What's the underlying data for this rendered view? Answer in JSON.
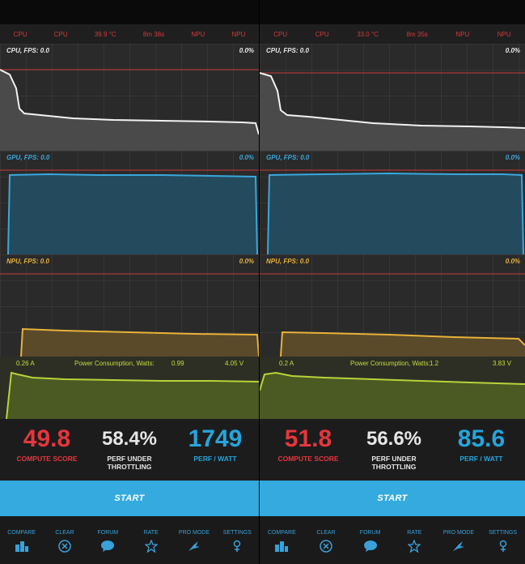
{
  "left": {
    "topbar": [
      "CPU",
      "CPU",
      "39.9 °C",
      "8m 38s",
      "NPU",
      "NPU"
    ],
    "cpu_label": "CPU, FPS:  0.0",
    "cpu_pct": "0.0%",
    "gpu_label": "GPU, FPS:  0.0",
    "gpu_pct": "0.0%",
    "npu_label": "NPU, FPS:  0.0",
    "npu_pct": "0.0%",
    "power_current": "0.26 A",
    "power_title": "Power Consumption, Watts:",
    "power_watts": "0.99",
    "power_voltage": "4.05 V",
    "compute_score": "49.8",
    "compute_label": "COMPUTE SCORE",
    "perf_throttling": "58.4%",
    "perf_throttling_label1": "PERF UNDER",
    "perf_throttling_label2": "THROTTLING",
    "perf_watt": "1749",
    "perf_watt_label": "PERF / WATT",
    "start": "START"
  },
  "right": {
    "topbar": [
      "CPU",
      "CPU",
      "33.0 °C",
      "8m 35s",
      "NPU",
      "NPU"
    ],
    "cpu_label": "CPU, FPS:  0.0",
    "cpu_pct": "0.0%",
    "gpu_label": "GPU, FPS:  0.0",
    "gpu_pct": "0.0%",
    "npu_label": "NPU, FPS:  0.0",
    "npu_pct": "0.0%",
    "power_current": "0.2 A",
    "power_title": "Power Consumption, Watts:",
    "power_watts": "1.2",
    "power_voltage": "3.83 V",
    "compute_score": "51.8",
    "compute_label": "COMPUTE SCORE",
    "perf_throttling": "56.6%",
    "perf_throttling_label1": "PERF UNDER",
    "perf_throttling_label2": "THROTTLING",
    "perf_watt": "85.6",
    "perf_watt_label": "PERF / WATT",
    "start": "START"
  },
  "nav": [
    "COMPARE",
    "CLEAR",
    "FORUM",
    "RATE",
    "PRO MODE",
    "SETTINGS"
  ],
  "icons": [
    "compare-icon",
    "clear-icon",
    "forum-icon",
    "rate-icon",
    "pro-mode-icon",
    "settings-icon"
  ],
  "colors": {
    "cpu": "#e8e8e8",
    "gpu": "#3aa7dc",
    "npu": "#e8b23a",
    "power": "#b8d33a",
    "start": "#34aadf",
    "score_red": "#e5363e",
    "perf_blue": "#25a5dc"
  }
}
